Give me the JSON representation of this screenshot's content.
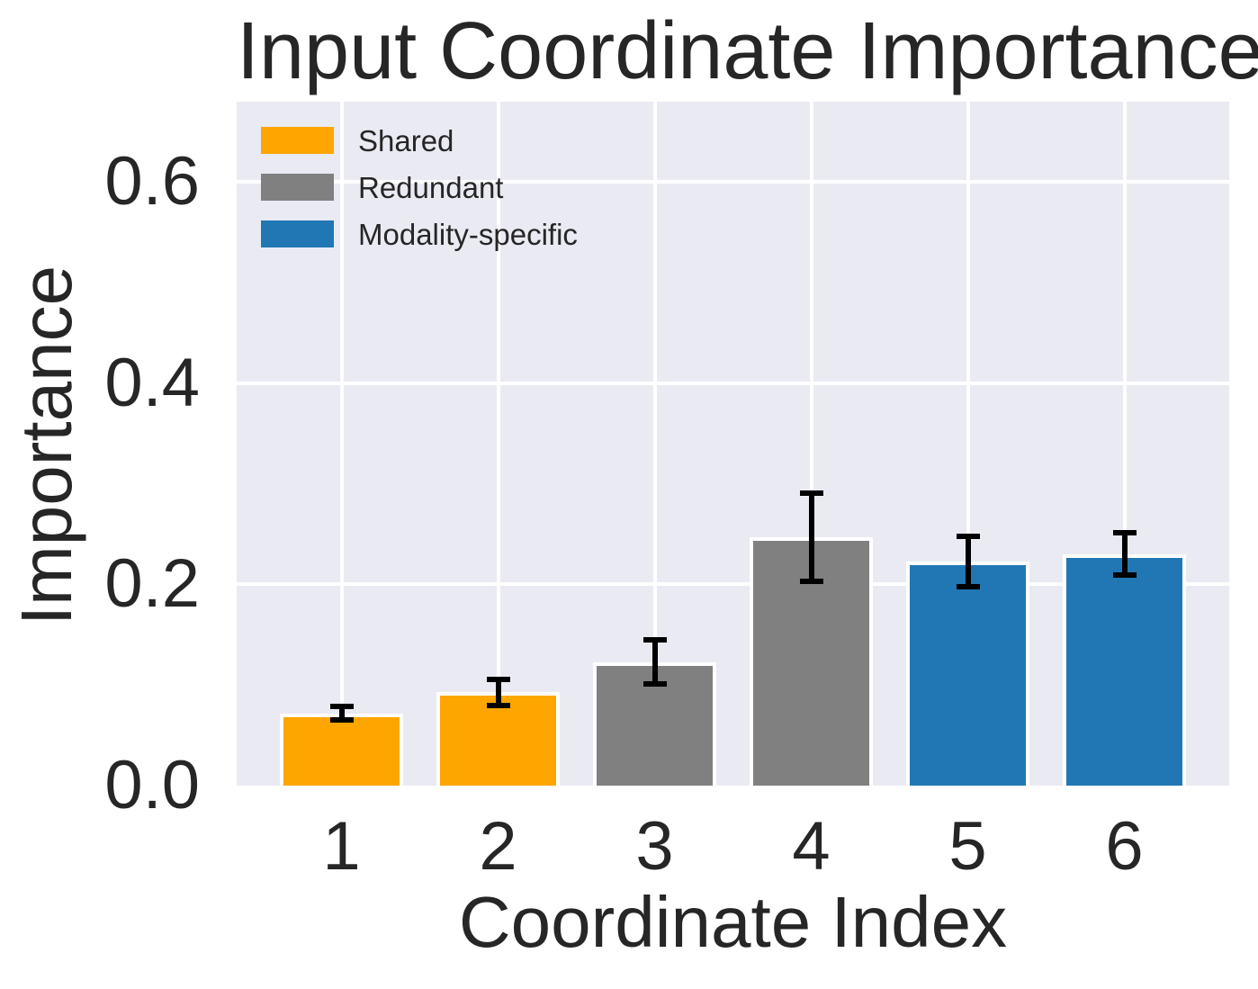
{
  "figure": {
    "title": "Input Coordinate Importance"
  },
  "chart_data": {
    "type": "bar",
    "title": "Input Coordinate Importance",
    "xlabel": "Coordinate Index",
    "ylabel": "Importance",
    "categories": [
      "1",
      "2",
      "3",
      "4",
      "5",
      "6"
    ],
    "values": [
      0.072,
      0.093,
      0.123,
      0.247,
      0.223,
      0.23
    ],
    "errors": [
      0.007,
      0.013,
      0.022,
      0.044,
      0.025,
      0.021
    ],
    "bar_groups": [
      "Shared",
      "Shared",
      "Redundant",
      "Redundant",
      "Modality-specific",
      "Modality-specific"
    ],
    "legend": [
      {
        "label": "Shared",
        "color": "#FFA500"
      },
      {
        "label": "Redundant",
        "color": "#808080"
      },
      {
        "label": "Modality-specific",
        "color": "#2077B4"
      }
    ],
    "group_colors": {
      "Shared": "#FFA500",
      "Redundant": "#808080",
      "Modality-specific": "#2077B4"
    },
    "yticks": [
      0.0,
      0.2,
      0.4,
      0.6
    ],
    "ytick_labels": [
      "0.0",
      "0.2",
      "0.4",
      "0.6"
    ],
    "ylim": [
      0,
      0.68
    ],
    "grid": true,
    "legend_position": "upper left",
    "plot_background": "#EAEAF2",
    "grid_color": "#FFFFFF",
    "bar_edge_color": "#FFFFFF",
    "error_bar_color": "#000000",
    "text_color": "#262626"
  }
}
